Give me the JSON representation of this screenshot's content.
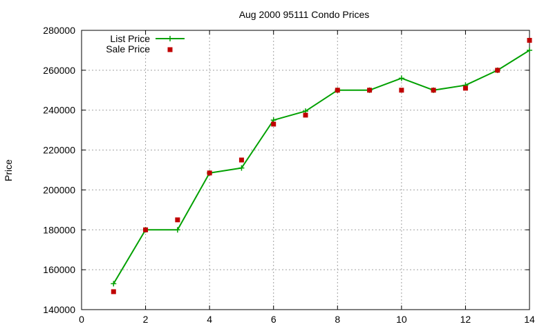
{
  "chart_data": {
    "type": "line",
    "title": "Aug 2000 95111 Condo Prices",
    "xlabel": "",
    "ylabel": "Price",
    "xlim": [
      0,
      14
    ],
    "ylim": [
      140000,
      280000
    ],
    "x_ticks": [
      0,
      2,
      4,
      6,
      8,
      10,
      12,
      14
    ],
    "y_ticks": [
      140000,
      160000,
      180000,
      200000,
      220000,
      240000,
      260000,
      280000
    ],
    "grid": true,
    "legend_position": "top-left",
    "series": [
      {
        "name": "List Price",
        "style": "linespoints",
        "marker": "plus",
        "color": "#00a000",
        "x": [
          1,
          2,
          3,
          4,
          5,
          6,
          7,
          8,
          9,
          10,
          11,
          12,
          13,
          14
        ],
        "y": [
          153000,
          180000,
          180000,
          208500,
          211000,
          235000,
          239500,
          250000,
          250000,
          256000,
          250000,
          252500,
          260000,
          270000
        ]
      },
      {
        "name": "Sale Price",
        "style": "points",
        "marker": "square",
        "color": "#c00000",
        "x": [
          1,
          2,
          3,
          4,
          5,
          6,
          7,
          8,
          9,
          10,
          11,
          12,
          13,
          14
        ],
        "y": [
          149000,
          180000,
          185000,
          208500,
          215000,
          233000,
          237500,
          250000,
          250000,
          250000,
          250000,
          251000,
          260000,
          275000
        ]
      }
    ]
  }
}
